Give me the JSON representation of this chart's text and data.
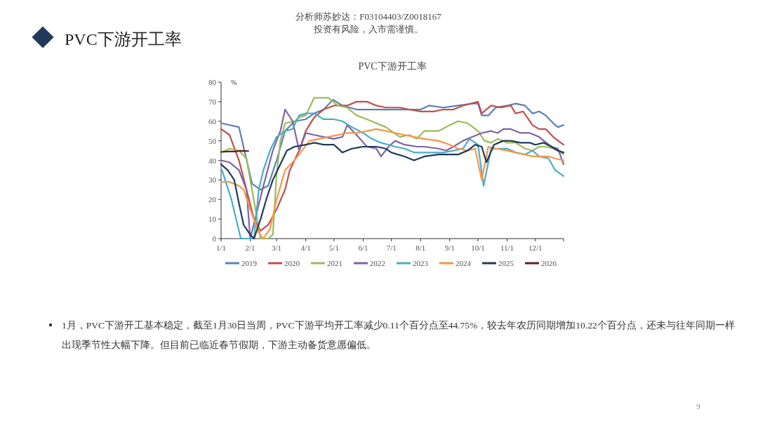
{
  "chart_data": {
    "type": "line",
    "title": "PVC下游开工率",
    "ylabel": "%",
    "annotations": [
      "分析师苏妙达：F03104403/Z0018167",
      "投资有风险，入市需谨慎。",
      "PVC下游开工率",
      "1月，PVC下游开工基本稳定，截至1月30日当周，PVC下游平均开工率减少0.11个百分点至44.75%，较去年农历同期增加10.22个百分点，还未与往年同期一样出现季节性大幅下降。但目前已临近春节假期，下游主动备货意愿偏低。",
      "9"
    ],
    "xlim": [
      "--01-01",
      "--12-31"
    ],
    "xticks": [
      {
        "value": "--01-01",
        "label": "1/1"
      },
      {
        "value": "--02-01",
        "label": "2/1"
      },
      {
        "value": "--03-01",
        "label": "3/1"
      },
      {
        "value": "--04-01",
        "label": "4/1"
      },
      {
        "value": "--05-01",
        "label": "5/1"
      },
      {
        "value": "--06-01",
        "label": "6/1"
      },
      {
        "value": "--07-01",
        "label": "7/1"
      },
      {
        "value": "--08-01",
        "label": "8/1"
      },
      {
        "value": "--09-01",
        "label": "9/1"
      },
      {
        "value": "--10-01",
        "label": "10/1"
      },
      {
        "value": "--11-01",
        "label": "11/1"
      },
      {
        "value": "--12-01",
        "label": "12/1"
      },
      {
        "value": "--12-31",
        "label": null
      }
    ],
    "ylim": [
      0,
      80
    ],
    "yticks": [
      0,
      10,
      20,
      30,
      40,
      50,
      60,
      70,
      80
    ],
    "grid": false,
    "legend": "bottom",
    "marker": "none",
    "line_style": "solid",
    "series": [
      {
        "name": "2019",
        "color": "#5b80b2",
        "x": [
          "--01-01",
          "--01-20",
          "--02-03",
          "--02-12",
          "--02-20",
          "--03-01",
          "--03-10",
          "--03-20",
          "--04-01",
          "--04-10",
          "--04-20",
          "--04-30",
          "--05-10",
          "--05-25",
          "--06-10",
          "--07-01",
          "--07-20",
          "--08-01",
          "--08-10",
          "--08-25",
          "--09-10",
          "--09-25",
          "--10-01",
          "--10-05",
          "--10-12",
          "--10-20",
          "--11-01",
          "--11-10",
          "--11-20",
          "--11-28",
          "--12-05",
          "--12-12",
          "--12-20",
          "--12-25",
          "--12-31"
        ],
        "values": [
          59,
          57,
          28,
          25,
          27,
          40,
          55,
          60,
          61,
          64,
          66,
          71,
          68,
          66,
          66,
          66,
          66,
          66,
          68,
          67,
          68,
          69,
          69,
          63,
          63,
          67,
          68,
          69,
          68,
          64,
          65,
          63,
          59,
          57,
          58
        ]
      },
      {
        "name": "2020",
        "color": "#c0504d",
        "x": [
          "--01-01",
          "--01-10",
          "--01-20",
          "--01-28",
          "--02-05",
          "--02-12",
          "--02-20",
          "--03-01",
          "--03-10",
          "--03-15",
          "--03-25",
          "--04-01",
          "--04-10",
          "--04-20",
          "--05-01",
          "--05-15",
          "--05-25",
          "--06-05",
          "--06-15",
          "--06-25",
          "--07-10",
          "--07-20",
          "--08-01",
          "--08-15",
          "--08-25",
          "--09-05",
          "--09-15",
          "--10-01",
          "--10-05",
          "--10-15",
          "--10-25",
          "--11-05",
          "--11-10",
          "--11-18",
          "--11-28",
          "--12-05",
          "--12-12",
          "--12-20",
          "--12-28",
          "--12-31"
        ],
        "values": [
          56,
          53,
          40,
          25,
          10,
          4,
          7,
          15,
          25,
          35,
          45,
          55,
          62,
          66,
          68,
          68,
          70,
          70,
          68,
          67,
          67,
          66,
          65,
          65,
          66,
          66,
          68,
          70,
          64,
          68,
          67,
          68,
          64,
          65,
          58,
          56,
          56,
          52,
          49,
          48
        ]
      },
      {
        "name": "2021",
        "color": "#9bbb59",
        "x": [
          "--01-01",
          "--01-10",
          "--01-20",
          "--01-28",
          "--02-12",
          "--02-20",
          "--02-25",
          "--03-01",
          "--03-05",
          "--03-10",
          "--03-20",
          "--03-25",
          "--04-01",
          "--04-10",
          "--04-20",
          "--04-25",
          "--05-05",
          "--05-15",
          "--05-25",
          "--06-05",
          "--06-15",
          "--06-25",
          "--07-10",
          "--07-20",
          "--07-28",
          "--08-05",
          "--08-20",
          "--09-01",
          "--09-10",
          "--09-20",
          "--10-01",
          "--10-08",
          "--10-15",
          "--10-22",
          "--11-01",
          "--11-10",
          "--11-20",
          "--11-28",
          "--12-05",
          "--12-12",
          "--12-20",
          "--12-28",
          "--12-31"
        ],
        "values": [
          44,
          46,
          45,
          41,
          0,
          0,
          2,
          33,
          50,
          59,
          60,
          62,
          63,
          72,
          72,
          72,
          68,
          67,
          63,
          61,
          59,
          57,
          52,
          53,
          51,
          55,
          55,
          58,
          60,
          59,
          55,
          50,
          49,
          51,
          49,
          49,
          46,
          45,
          47,
          47,
          46,
          44,
          43
        ]
      },
      {
        "name": "2022",
        "color": "#8064a2",
        "x": [
          "--01-01",
          "--01-10",
          "--01-20",
          "--01-28",
          "--02-01",
          "--02-15",
          "--02-25",
          "--03-05",
          "--03-10",
          "--03-18",
          "--03-25",
          "--04-01",
          "--04-10",
          "--04-20",
          "--05-01",
          "--05-10",
          "--05-15",
          "--05-25",
          "--06-05",
          "--06-15",
          "--06-20",
          "--06-28",
          "--07-05",
          "--07-15",
          "--07-28",
          "--08-05",
          "--08-20",
          "--08-28",
          "--09-05",
          "--09-15",
          "--09-25",
          "--10-05",
          "--10-15",
          "--10-22",
          "--10-28",
          "--11-05",
          "--11-15",
          "--11-25",
          "--12-05",
          "--12-10",
          "--12-18",
          "--12-25",
          "--12-31"
        ],
        "values": [
          40,
          39,
          35,
          25,
          0,
          27,
          45,
          55,
          66,
          60,
          45,
          54,
          53,
          52,
          51,
          52,
          58,
          53,
          47,
          46,
          42,
          47,
          50,
          48,
          47,
          47,
          46,
          45,
          47,
          50,
          52,
          54,
          55,
          54,
          56,
          56,
          54,
          54,
          52,
          50,
          47,
          46,
          38
        ]
      },
      {
        "name": "2023",
        "color": "#4bacc6",
        "x": [
          "--01-02",
          "--01-12",
          "--01-22",
          "--02-05",
          "--02-10",
          "--02-15",
          "--02-22",
          "--03-01",
          "--03-10",
          "--03-18",
          "--03-25",
          "--04-01",
          "--04-10",
          "--04-20",
          "--05-01",
          "--05-10",
          "--05-20",
          "--06-01",
          "--06-10",
          "--06-20",
          "--06-28",
          "--07-05",
          "--07-15",
          "--07-25",
          "--08-10",
          "--08-25",
          "--09-05",
          "--09-15",
          "--09-22",
          "--10-01",
          "--10-07",
          "--10-15",
          "--10-25",
          "--11-01",
          "--11-10",
          "--11-20",
          "--11-28",
          "--12-05",
          "--12-15",
          "--12-22",
          "--12-31"
        ],
        "values": [
          35,
          20,
          0,
          0,
          25,
          35,
          45,
          52,
          55,
          56,
          63,
          64,
          64,
          61,
          61,
          60,
          57,
          54,
          51,
          49,
          48,
          47,
          46,
          44,
          44,
          44,
          45,
          46,
          51,
          48,
          27,
          46,
          46,
          46,
          44,
          43,
          45,
          42,
          41,
          35,
          32
        ]
      },
      {
        "name": "2024",
        "color": "#f79646",
        "x": [
          "--01-01",
          "--01-10",
          "--01-20",
          "--01-25",
          "--02-01",
          "--02-10",
          "--02-15",
          "--02-22",
          "--03-01",
          "--03-10",
          "--03-20",
          "--03-28",
          "--04-05",
          "--04-15",
          "--04-25",
          "--05-05",
          "--05-15",
          "--05-25",
          "--06-05",
          "--06-15",
          "--06-25",
          "--07-05",
          "--07-15",
          "--07-25",
          "--08-05",
          "--08-20",
          "--09-01",
          "--09-10",
          "--09-20",
          "--09-28",
          "--10-05",
          "--10-12",
          "--10-20",
          "--11-01",
          "--11-10",
          "--11-20",
          "--11-28",
          "--12-05",
          "--12-15",
          "--12-22",
          "--12-31"
        ],
        "values": [
          29,
          29,
          27,
          25,
          15,
          3,
          0,
          5,
          20,
          35,
          40,
          45,
          50,
          51,
          52,
          53,
          54,
          54,
          55,
          56,
          55,
          54,
          53,
          52,
          51,
          50,
          48,
          46,
          45,
          46,
          30,
          47,
          46,
          45,
          44,
          43,
          42,
          42,
          42,
          41,
          40
        ]
      },
      {
        "name": "2025",
        "color": "#1f3a5a",
        "x": [
          "--01-01",
          "--01-08",
          "--01-15",
          "--01-20",
          "--01-25",
          "--02-01",
          "--02-05",
          "--02-12",
          "--02-18",
          "--02-25",
          "--03-05",
          "--03-12",
          "--03-20",
          "--04-01",
          "--04-10",
          "--04-20",
          "--05-01",
          "--05-10",
          "--05-20",
          "--06-01",
          "--06-15",
          "--06-25",
          "--07-01",
          "--07-15",
          "--07-25",
          "--08-05",
          "--08-20",
          "--09-01",
          "--09-10",
          "--09-20",
          "--09-28",
          "--10-05",
          "--10-10",
          "--10-18",
          "--10-28",
          "--11-05",
          "--11-15",
          "--11-25",
          "--12-01",
          "--12-10",
          "--12-18",
          "--12-25",
          "--12-31"
        ],
        "values": [
          38,
          35,
          30,
          18,
          7,
          2,
          0,
          10,
          20,
          30,
          38,
          45,
          47,
          48,
          49,
          48,
          48,
          44,
          46,
          47,
          47,
          46,
          44,
          42,
          40,
          42,
          43,
          43,
          43,
          45,
          48,
          47,
          39,
          48,
          50,
          50,
          49,
          49,
          48,
          49,
          47,
          45,
          44
        ]
      },
      {
        "name": "2026",
        "color": "#5c1f22",
        "x": [
          "--01-01",
          "--01-08",
          "--01-15",
          "--01-22",
          "--01-30"
        ],
        "values": [
          44.3,
          44.5,
          44.5,
          44.9,
          44.75
        ]
      }
    ]
  }
}
